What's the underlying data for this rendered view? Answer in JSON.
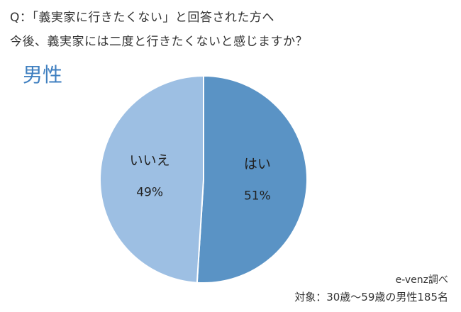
{
  "question": {
    "line1": "Q：「義実家に行きたくない」と回答された方へ",
    "line2": "今後、義実家には二度と行きたくないと感じますか？"
  },
  "chart_data": {
    "type": "pie",
    "title": "男性",
    "categories": [
      "はい",
      "いいえ"
    ],
    "values": [
      51,
      49
    ],
    "value_labels": [
      "51%",
      "49%"
    ],
    "colors": [
      "#5a93c5",
      "#9dbfe3"
    ],
    "start": "top, clockwise"
  },
  "footer": {
    "source": "e-venz調べ",
    "target": "対象：30歳〜59歳の男性185名"
  }
}
